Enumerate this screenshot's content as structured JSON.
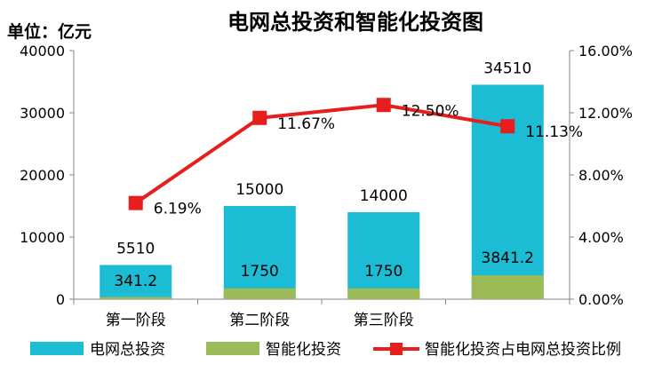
{
  "chart_data": {
    "type": "bar",
    "title": "电网总投资和智能化投资图",
    "unit_label": "单位：亿元",
    "categories": [
      "第一阶段",
      "第二阶段",
      "第三阶段",
      ""
    ],
    "ylim": [
      0,
      40000
    ],
    "y2lim": [
      0,
      0.16
    ],
    "yticks": [
      "0",
      "10000",
      "20000",
      "30000",
      "40000"
    ],
    "y2ticks": [
      "0.00%",
      "4.00%",
      "8.00%",
      "12.00%",
      "16.00%"
    ],
    "legend_position": "bottom",
    "grid": false,
    "series": [
      {
        "name": "电网总投资",
        "type": "bar",
        "color": "#1BBCD4",
        "values": [
          5510,
          15000,
          14000,
          34510
        ],
        "labels": [
          "5510",
          "15000",
          "14000",
          "34510"
        ]
      },
      {
        "name": "智能化投资",
        "type": "bar",
        "color": "#9BBB59",
        "values": [
          341.2,
          1750,
          1750,
          3841.2
        ],
        "labels": [
          "341.2",
          "1750",
          "1750",
          "3841.2"
        ]
      },
      {
        "name": "智能化投资占电网总投资比例",
        "type": "line",
        "axis": "right",
        "color": "#E61E1E",
        "values": [
          0.0619,
          0.1167,
          0.125,
          0.1113
        ],
        "labels": [
          "6.19%",
          "11.67%",
          "12.50%",
          "11.13%"
        ]
      }
    ]
  }
}
